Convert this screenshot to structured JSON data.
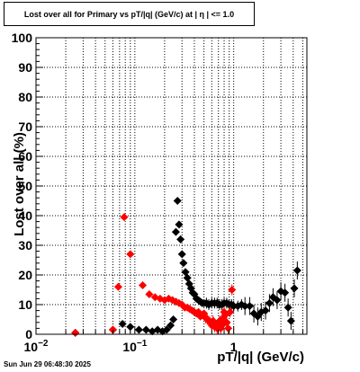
{
  "chart_data": {
    "type": "scatter",
    "title": "Lost over all for Primary vs pT/|q| (GeV/c) at |  η  | <= 1.0",
    "xlabel": "pT/|q| (GeV/c)",
    "ylabel": "Lost over all (%)",
    "timestamp": "Sun Jun 29 06:48:30 2025",
    "xscale": "log",
    "xlim": [
      0.01,
      5.5
    ],
    "ylim": [
      0,
      100
    ],
    "grid": true,
    "x_ticks": [
      {
        "value": 0.01,
        "base": "10",
        "exp": "−2"
      },
      {
        "value": 0.1,
        "base": "10",
        "exp": "−1"
      },
      {
        "value": 1,
        "base": "1",
        "exp": ""
      }
    ],
    "y_ticks": [
      0,
      10,
      20,
      30,
      40,
      50,
      60,
      70,
      80,
      90,
      100
    ],
    "series": [
      {
        "color": "#000000",
        "points": [
          [
            0.025,
            0.5
          ],
          [
            0.06,
            1.5
          ],
          [
            0.075,
            3.5
          ],
          [
            0.09,
            2.5
          ],
          [
            0.11,
            1.5
          ],
          [
            0.13,
            1.5
          ],
          [
            0.15,
            1.0
          ],
          [
            0.17,
            1.5
          ],
          [
            0.19,
            1.0
          ],
          [
            0.21,
            1.5
          ],
          [
            0.23,
            3.0
          ],
          [
            0.245,
            5.0
          ],
          [
            0.26,
            34.5
          ],
          [
            0.27,
            45.0
          ],
          [
            0.28,
            37.0
          ],
          [
            0.29,
            32.0
          ],
          [
            0.3,
            27.0
          ],
          [
            0.31,
            24.0
          ],
          [
            0.325,
            21.0
          ],
          [
            0.34,
            19.0
          ],
          [
            0.355,
            17.0
          ],
          [
            0.37,
            15.5
          ],
          [
            0.385,
            14.0
          ],
          [
            0.4,
            13.5
          ],
          [
            0.42,
            12.0
          ],
          [
            0.44,
            11.5
          ],
          [
            0.46,
            11.0
          ],
          [
            0.48,
            10.5
          ],
          [
            0.5,
            10.5
          ],
          [
            0.53,
            10.5
          ],
          [
            0.56,
            10.0
          ],
          [
            0.6,
            10.5
          ],
          [
            0.64,
            10.5
          ],
          [
            0.68,
            10.5
          ],
          [
            0.72,
            10.0
          ],
          [
            0.76,
            10.0
          ],
          [
            0.8,
            10.5
          ],
          [
            0.85,
            10.5
          ],
          [
            0.9,
            10.0
          ],
          [
            0.95,
            10.0
          ],
          [
            1.0,
            9.5
          ],
          [
            1.1,
            9.5
          ],
          [
            1.2,
            10.0
          ],
          [
            1.3,
            9.5
          ],
          [
            1.45,
            9.5
          ],
          [
            1.6,
            7.0
          ],
          [
            1.75,
            6.0
          ],
          [
            1.9,
            7.5
          ],
          [
            2.1,
            8.0
          ],
          [
            2.3,
            10.5
          ],
          [
            2.5,
            12.5
          ],
          [
            2.75,
            11.5
          ],
          [
            3.0,
            14.5
          ],
          [
            3.3,
            14.0
          ],
          [
            3.55,
            9.0
          ],
          [
            3.8,
            4.5
          ],
          [
            4.1,
            15.5
          ],
          [
            4.4,
            21.5
          ]
        ]
      },
      {
        "color": "#ff0000",
        "points": [
          [
            0.025,
            0.5
          ],
          [
            0.06,
            1.5
          ],
          [
            0.068,
            16.0
          ],
          [
            0.078,
            39.5
          ],
          [
            0.09,
            27.0
          ],
          [
            0.12,
            16.5
          ],
          [
            0.14,
            13.5
          ],
          [
            0.16,
            12.5
          ],
          [
            0.18,
            12.0
          ],
          [
            0.2,
            11.5
          ],
          [
            0.22,
            12.0
          ],
          [
            0.24,
            11.5
          ],
          [
            0.26,
            11.0
          ],
          [
            0.28,
            10.5
          ],
          [
            0.3,
            10.0
          ],
          [
            0.32,
            9.0
          ],
          [
            0.34,
            9.0
          ],
          [
            0.36,
            8.5
          ],
          [
            0.38,
            8.0
          ],
          [
            0.4,
            7.5
          ],
          [
            0.42,
            7.0
          ],
          [
            0.44,
            7.5
          ],
          [
            0.46,
            6.0
          ],
          [
            0.48,
            6.5
          ],
          [
            0.5,
            7.0
          ],
          [
            0.52,
            5.5
          ],
          [
            0.54,
            5.0
          ],
          [
            0.56,
            4.5
          ],
          [
            0.58,
            4.0
          ],
          [
            0.6,
            3.0
          ],
          [
            0.62,
            4.5
          ],
          [
            0.64,
            2.5
          ],
          [
            0.66,
            3.0
          ],
          [
            0.68,
            2.0
          ],
          [
            0.7,
            3.5
          ],
          [
            0.72,
            4.5
          ],
          [
            0.74,
            2.0
          ],
          [
            0.76,
            3.0
          ],
          [
            0.78,
            5.5
          ],
          [
            0.8,
            7.5
          ],
          [
            0.82,
            6.5
          ],
          [
            0.85,
            4.0
          ],
          [
            0.88,
            2.0
          ],
          [
            0.92,
            7.5
          ],
          [
            0.96,
            15.0
          ]
        ]
      }
    ]
  }
}
